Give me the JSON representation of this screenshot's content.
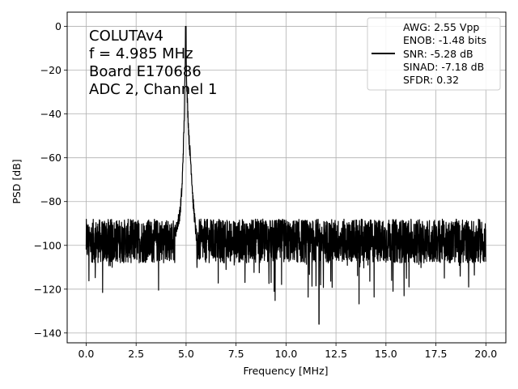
{
  "chart_data": {
    "type": "line",
    "xlabel": "Frequency [MHz]",
    "ylabel": "PSD [dB]",
    "xlim": [
      -0.95,
      21.0
    ],
    "ylim": [
      -144.5,
      6.5
    ],
    "xticks": [
      0.0,
      2.5,
      5.0,
      7.5,
      10.0,
      12.5,
      15.0,
      17.5,
      20.0
    ],
    "xtick_labels": [
      "0.0",
      "2.5",
      "5.0",
      "7.5",
      "10.0",
      "12.5",
      "15.0",
      "17.5",
      "20.0"
    ],
    "yticks": [
      0,
      -20,
      -40,
      -60,
      -80,
      -100,
      -120,
      -140
    ],
    "ytick_labels": [
      "0",
      "−20",
      "−40",
      "−60",
      "−80",
      "−100",
      "−120",
      "−140"
    ],
    "grid": true,
    "legend_position": "top-right",
    "annotation_lines": [
      "COLUTAv4",
      "f = 4.985 MHz",
      "Board E170686",
      "ADC 2, Channel 1"
    ],
    "legend_lines": [
      "AWG: 2.55 Vpp",
      "ENOB: -1.48 bits",
      "SNR: -5.28 dB",
      "SINAD: -7.18 dB",
      "SFDR: 0.32"
    ],
    "series": [
      {
        "color": "#000000",
        "peak": {
          "x": 4.985,
          "y": 0
        },
        "noise_floor_mean": -98,
        "noise_floor_band": [
          -110,
          -88
        ],
        "x": [
          0.0,
          0.05,
          0.3,
          1.0,
          2.0,
          3.0,
          4.0,
          4.5,
          4.7,
          4.8,
          4.9,
          4.95,
          4.985,
          5.02,
          5.08,
          5.15,
          5.25,
          5.35,
          5.5,
          5.6,
          6.0,
          8.0,
          10.0,
          11.65,
          12.0,
          14.0,
          16.0,
          18.0,
          20.0
        ],
        "y": [
          -81,
          -95,
          -98,
          -98,
          -99,
          -98,
          -98,
          -93,
          -85,
          -73,
          -45,
          -20,
          0,
          -22,
          -38,
          -52,
          -64,
          -80,
          -95,
          -98,
          -98,
          -99,
          -98,
          -136,
          -98,
          -98,
          -99,
          -98,
          -98
        ]
      }
    ]
  }
}
